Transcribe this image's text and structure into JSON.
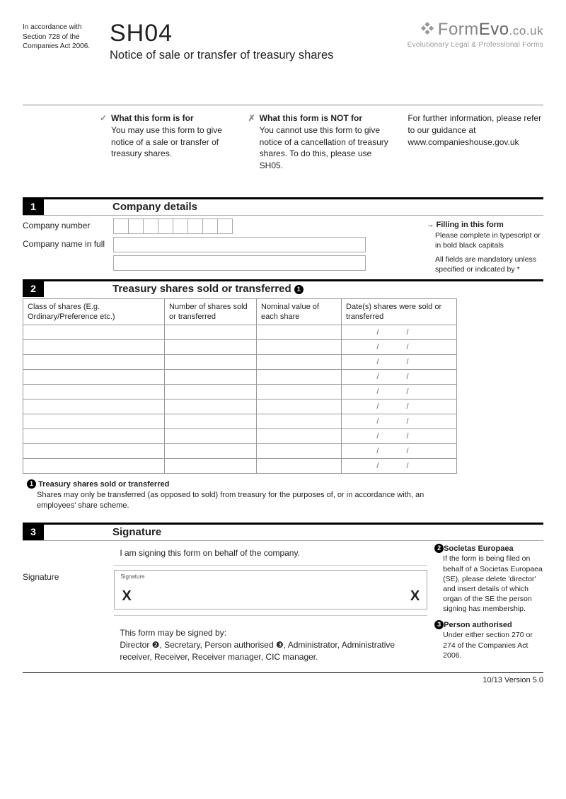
{
  "header": {
    "accordance": "In accordance with Section 728 of the Companies Act 2006.",
    "code": "SH04",
    "subtitle": "Notice of sale or transfer of treasury shares",
    "brand_html": "FormEvo.co.uk",
    "tagline": "Evolutionary Legal & Professional Forms"
  },
  "intro": {
    "for_title": "What this form is for",
    "for_body": "You may use this form to give notice of a sale or transfer of treasury shares.",
    "not_title": "What this form is NOT for",
    "not_body": "You cannot use this form to give notice of a cancellation of treasury shares. To do this, please use SH05.",
    "info_body": "For further information, please refer to our guidance at www.companieshouse.gov.uk"
  },
  "s1": {
    "num": "1",
    "title": "Company details",
    "label_number": "Company number",
    "label_name": "Company name  in full",
    "note_title": "Filling in this form",
    "note_body": "Please complete in typescript or in bold black capitals",
    "note_body2": "All fields are mandatory unless specified or indicated by *",
    "num_boxes": 8
  },
  "s2": {
    "num": "2",
    "title": "Treasury shares sold or transferred",
    "cols": {
      "c1": "Class of shares\n(E.g. Ordinary/Preference etc.)",
      "c2": "Number of shares sold or transferred",
      "c3": "Nominal value of each share",
      "c4": "Date(s) shares were sold or transferred"
    },
    "rows": 10,
    "date_placeholder": "//",
    "foot_title": "Treasury shares sold or transferred",
    "foot_body": "Shares may only be transferred (as opposed to sold) from treasury for the purposes of, or in accordance with, an employees' share scheme."
  },
  "s3": {
    "num": "3",
    "title": "Signature",
    "statement": "I am signing this form on behalf of the company.",
    "label": "Signature",
    "boxlabel": "Signature",
    "signed_by_intro": "This form may be signed by:",
    "signed_by": "Director ❷, Secretary, Person authorised ❸, Administrator, Administrative receiver, Receiver, Receiver manager, CIC manager.",
    "n2_title": "Societas Europaea",
    "n2_body": "If the form is being filed on behalf of a Societas Europaea (SE), please delete 'director' and insert details of which organ of the SE the person signing has membership.",
    "n3_title": "Person authorised",
    "n3_body": "Under either section 270 or 274 of the Companies Act 2006."
  },
  "version": "10/13 Version 5.0",
  "colors": {
    "rule": "#888",
    "cell": "#aaa"
  }
}
